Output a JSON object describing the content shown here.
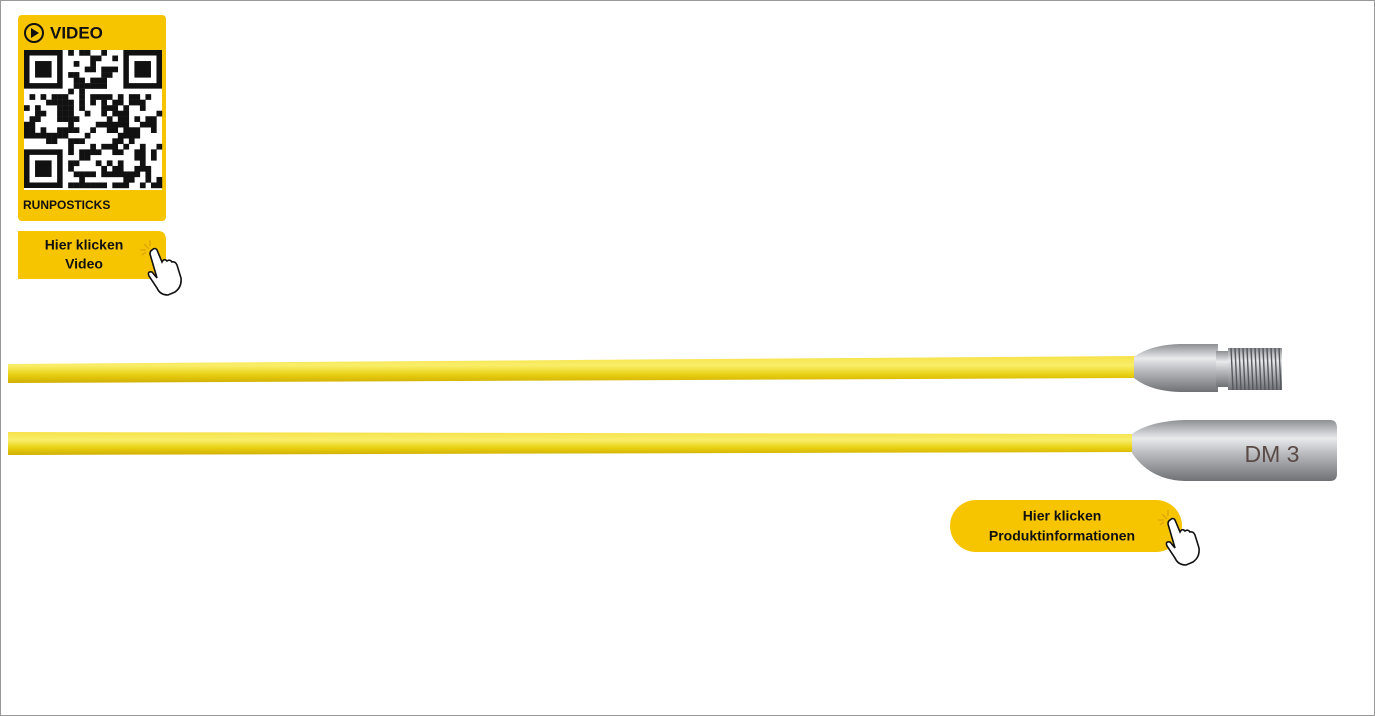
{
  "qr_card": {
    "label": "VIDEO",
    "caption": "RUNPOSTICKS"
  },
  "video_button": {
    "lines": [
      "Hier klicken",
      "Video"
    ]
  },
  "product_button": {
    "lines": [
      "Hier klicken",
      "Produktinformationen"
    ]
  },
  "product": {
    "engraving": "DM 3"
  }
}
